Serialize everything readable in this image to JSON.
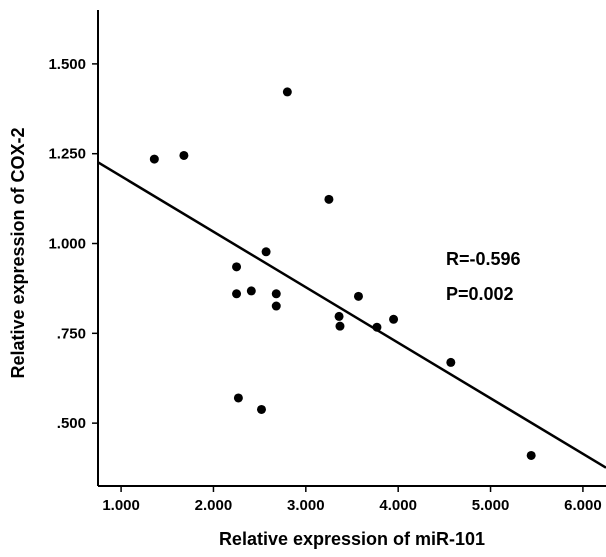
{
  "chart_data": {
    "type": "scatter",
    "title": "",
    "xlabel": "Relative expression of miR-101",
    "ylabel": "Relative expression of COX-2",
    "xlim": [
      0.75,
      6.25
    ],
    "ylim": [
      0.325,
      1.65
    ],
    "x_ticks": [
      1.0,
      2.0,
      3.0,
      4.0,
      5.0,
      6.0
    ],
    "x_tick_labels": [
      "1.000",
      "2.000",
      "3.000",
      "4.000",
      "5.000",
      "6.000"
    ],
    "y_ticks": [
      0.5,
      0.75,
      1.0,
      1.25,
      1.5
    ],
    "y_tick_labels": [
      ".500",
      ".750",
      "1.000",
      "1.250",
      "1.500"
    ],
    "grid": false,
    "legend": "none",
    "points": [
      {
        "x": 1.36,
        "y": 1.235
      },
      {
        "x": 1.68,
        "y": 1.245
      },
      {
        "x": 2.25,
        "y": 0.935
      },
      {
        "x": 2.25,
        "y": 0.86
      },
      {
        "x": 2.27,
        "y": 0.57
      },
      {
        "x": 2.41,
        "y": 0.868
      },
      {
        "x": 2.52,
        "y": 0.538
      },
      {
        "x": 2.57,
        "y": 0.977
      },
      {
        "x": 2.68,
        "y": 0.86
      },
      {
        "x": 2.68,
        "y": 0.826
      },
      {
        "x": 2.8,
        "y": 1.422
      },
      {
        "x": 3.25,
        "y": 1.123
      },
      {
        "x": 3.36,
        "y": 0.797
      },
      {
        "x": 3.37,
        "y": 0.77
      },
      {
        "x": 3.57,
        "y": 0.853
      },
      {
        "x": 3.77,
        "y": 0.767
      },
      {
        "x": 3.95,
        "y": 0.789
      },
      {
        "x": 4.57,
        "y": 0.669
      },
      {
        "x": 5.44,
        "y": 0.41
      }
    ],
    "fit_line": {
      "x": [
        0.75,
        6.25
      ],
      "y": [
        1.226,
        0.376
      ]
    },
    "annotations": [
      "R=-0.596",
      "P=0.002"
    ],
    "colors": {
      "points": "#000000",
      "line": "#000000",
      "axes": "#000000"
    }
  }
}
